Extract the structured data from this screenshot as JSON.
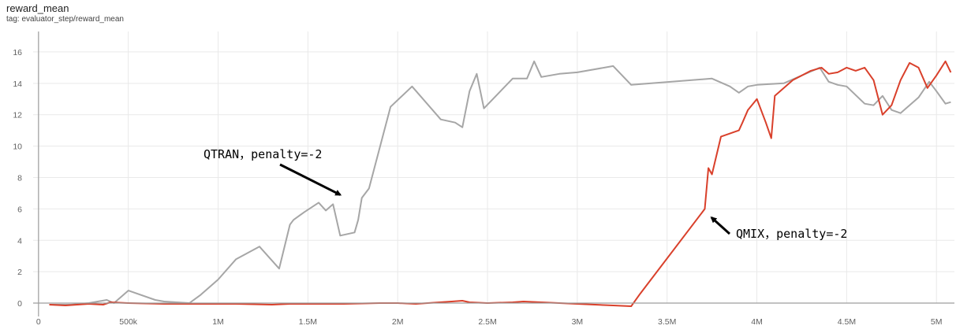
{
  "header": {
    "title": "reward_mean",
    "tag": "tag: evaluator_step/reward_mean"
  },
  "chart_data": {
    "type": "line",
    "title": "reward_mean",
    "xlabel": "",
    "ylabel": "",
    "xlim": [
      -30000,
      5100000
    ],
    "ylim": [
      -0.5,
      17.3
    ],
    "x_ticks": [
      0,
      500000,
      1000000,
      1500000,
      2000000,
      2500000,
      3000000,
      3500000,
      4000000,
      4500000,
      5000000
    ],
    "x_tick_labels": [
      "0",
      "500k",
      "1M",
      "1.5M",
      "2M",
      "2.5M",
      "3M",
      "3.5M",
      "4M",
      "4.5M",
      "5M"
    ],
    "y_ticks": [
      0,
      2,
      4,
      6,
      8,
      10,
      12,
      14,
      16
    ],
    "y_tick_labels": [
      "0",
      "2",
      "4",
      "6",
      "8",
      "10",
      "12",
      "14",
      "16"
    ],
    "grid": true,
    "series": [
      {
        "color": "#a6a6a6",
        "raw_color": "#e3e3e3",
        "x": [
          60000,
          180000,
          280000,
          380000,
          420000,
          500000,
          650000,
          700000,
          840000,
          900000,
          1000000,
          1100000,
          1230000,
          1340000,
          1400000,
          1420000,
          1480000,
          1560000,
          1600000,
          1640000,
          1680000,
          1760000,
          1780000,
          1800000,
          1840000,
          1960000,
          2080000,
          2240000,
          2320000,
          2360000,
          2400000,
          2440000,
          2480000,
          2640000,
          2720000,
          2760000,
          2800000,
          2900000,
          3000000,
          3200000,
          3300000,
          3750000,
          3850000,
          3900000,
          3950000,
          4000000,
          4150000,
          4350000,
          4400000,
          4450000,
          4500000,
          4600000,
          4650000,
          4700000,
          4750000,
          4800000,
          4900000,
          4960000,
          5000000,
          5050000,
          5080000
        ],
        "y": [
          -0.1,
          -0.1,
          0.0,
          0.2,
          0.0,
          0.8,
          0.2,
          0.1,
          0.0,
          0.5,
          1.5,
          2.8,
          3.6,
          2.2,
          5.0,
          5.3,
          5.8,
          6.4,
          5.9,
          6.3,
          4.3,
          4.5,
          5.3,
          6.7,
          7.3,
          12.5,
          13.8,
          11.7,
          11.5,
          11.2,
          13.5,
          14.6,
          12.4,
          14.3,
          14.3,
          15.4,
          14.4,
          14.6,
          14.7,
          15.1,
          13.9,
          14.3,
          13.8,
          13.4,
          13.8,
          13.9,
          14.0,
          15.0,
          14.1,
          13.9,
          13.8,
          12.7,
          12.6,
          13.2,
          12.3,
          12.1,
          13.1,
          14.1,
          13.5,
          12.7,
          12.8
        ]
      },
      {
        "color": "#d9402b",
        "raw_color": "#f6c6bd",
        "x": [
          60000,
          150000,
          280000,
          360000,
          400000,
          500000,
          700000,
          900000,
          1100000,
          1300000,
          1400000,
          1500000,
          1560000,
          1620000,
          1700000,
          1900000,
          2000000,
          2100000,
          2300000,
          2360000,
          2400000,
          2500000,
          2640000,
          2700000,
          2800000,
          3000000,
          3200000,
          3300000,
          3350000,
          3710000,
          3730000,
          3750000,
          3800000,
          3900000,
          3920000,
          3950000,
          4000000,
          4050000,
          4080000,
          4100000,
          4200000,
          4300000,
          4360000,
          4400000,
          4450000,
          4500000,
          4550000,
          4600000,
          4650000,
          4700000,
          4750000,
          4800000,
          4850000,
          4900000,
          4950000,
          5000000,
          5050000,
          5080000
        ],
        "y": [
          -0.1,
          -0.15,
          -0.05,
          -0.1,
          0.05,
          0.0,
          -0.05,
          -0.05,
          -0.05,
          -0.1,
          -0.05,
          -0.05,
          -0.05,
          -0.05,
          -0.05,
          0.0,
          0.0,
          -0.05,
          0.1,
          0.15,
          0.05,
          0.0,
          0.05,
          0.1,
          0.05,
          -0.05,
          -0.15,
          -0.2,
          0.6,
          6.0,
          8.6,
          8.2,
          10.6,
          11.0,
          11.5,
          12.3,
          13.0,
          11.5,
          10.5,
          13.2,
          14.2,
          14.8,
          15.0,
          14.6,
          14.7,
          15.0,
          14.8,
          15.0,
          14.2,
          12.0,
          12.6,
          14.2,
          15.3,
          15.0,
          13.7,
          14.5,
          15.4,
          14.7
        ]
      }
    ],
    "annotations": [
      {
        "text": "QTRAN，penalty=-2",
        "target": [
          1680000,
          6.9
        ]
      },
      {
        "text": "QMIX，penalty=-2",
        "target": [
          3730000,
          5.3
        ]
      }
    ]
  }
}
